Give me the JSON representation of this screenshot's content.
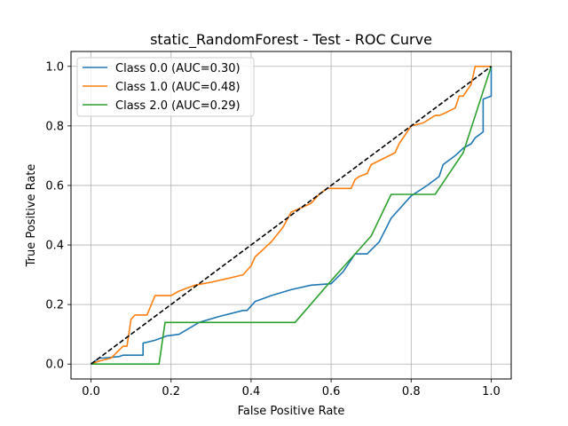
{
  "chart_data": {
    "type": "line",
    "title": "static_RandomForest - Test - ROC Curve",
    "xlabel": "False Positive Rate",
    "ylabel": "True Positive Rate",
    "xlim": [
      -0.05,
      1.05
    ],
    "ylim": [
      -0.05,
      1.05
    ],
    "xticks": [
      "0.0",
      "0.2",
      "0.4",
      "0.6",
      "0.8",
      "1.0"
    ],
    "yticks": [
      "0.0",
      "0.2",
      "0.4",
      "0.6",
      "0.8",
      "1.0"
    ],
    "grid": true,
    "legend_position": "top-left",
    "series": [
      {
        "name": "Class 0.0 (AUC=0.30)",
        "color": "#1f77b4",
        "x": [
          0.0,
          0.02,
          0.03,
          0.07,
          0.08,
          0.13,
          0.13,
          0.16,
          0.19,
          0.22,
          0.27,
          0.32,
          0.38,
          0.39,
          0.41,
          0.45,
          0.5,
          0.55,
          0.6,
          0.63,
          0.66,
          0.69,
          0.72,
          0.75,
          0.8,
          0.84,
          0.87,
          0.88,
          0.91,
          0.93,
          0.95,
          0.96,
          0.98,
          0.98,
          1.0,
          1.0
        ],
        "y": [
          0.0,
          0.02,
          0.02,
          0.025,
          0.03,
          0.03,
          0.07,
          0.08,
          0.095,
          0.1,
          0.14,
          0.16,
          0.18,
          0.18,
          0.21,
          0.23,
          0.25,
          0.265,
          0.27,
          0.31,
          0.37,
          0.37,
          0.41,
          0.49,
          0.565,
          0.6,
          0.63,
          0.67,
          0.7,
          0.725,
          0.74,
          0.76,
          0.78,
          0.89,
          0.9,
          1.0
        ]
      },
      {
        "name": "Class 1.0 (AUC=0.48)",
        "color": "#ff7f0e",
        "x": [
          0.0,
          0.02,
          0.05,
          0.08,
          0.09,
          0.1,
          0.11,
          0.14,
          0.16,
          0.2,
          0.22,
          0.26,
          0.3,
          0.35,
          0.38,
          0.4,
          0.41,
          0.45,
          0.48,
          0.5,
          0.55,
          0.57,
          0.58,
          0.59,
          0.65,
          0.66,
          0.67,
          0.69,
          0.7,
          0.76,
          0.77,
          0.8,
          0.83,
          0.86,
          0.87,
          0.88,
          0.91,
          0.92,
          0.93,
          0.95,
          0.96,
          0.97,
          1.0
        ],
        "y": [
          0.0,
          0.01,
          0.02,
          0.06,
          0.06,
          0.15,
          0.165,
          0.165,
          0.23,
          0.23,
          0.245,
          0.265,
          0.275,
          0.29,
          0.3,
          0.33,
          0.36,
          0.41,
          0.46,
          0.51,
          0.54,
          0.57,
          0.58,
          0.59,
          0.59,
          0.62,
          0.63,
          0.64,
          0.67,
          0.71,
          0.74,
          0.8,
          0.81,
          0.835,
          0.835,
          0.84,
          0.86,
          0.9,
          0.9,
          0.94,
          1.0,
          1.0,
          1.0
        ]
      },
      {
        "name": "Class 2.0 (AUC=0.29)",
        "color": "#2ca02c",
        "x": [
          0.0,
          0.17,
          0.185,
          0.51,
          0.6,
          0.7,
          0.75,
          0.8,
          0.86,
          0.93,
          1.0
        ],
        "y": [
          0.0,
          0.0,
          0.14,
          0.14,
          0.28,
          0.43,
          0.57,
          0.57,
          0.57,
          0.71,
          1.0
        ]
      },
      {
        "color": "#000000",
        "dashed": true,
        "x": [
          0.0,
          1.0
        ],
        "y": [
          0.0,
          1.0
        ]
      }
    ]
  }
}
